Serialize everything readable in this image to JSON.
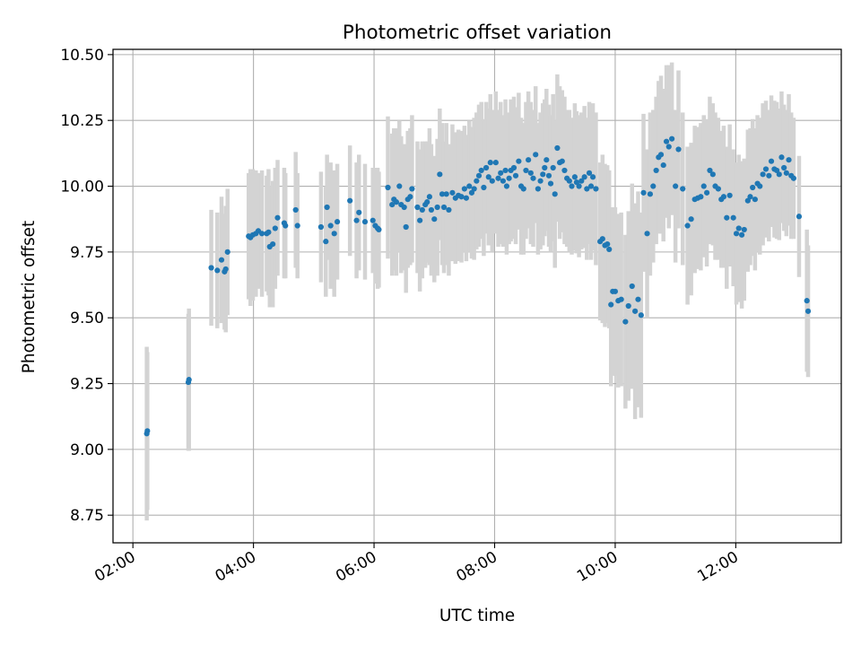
{
  "chart_data": {
    "type": "scatter",
    "title": "Photometric offset variation",
    "xlabel": "UTC time",
    "ylabel": "Photometric offset",
    "x_unit": "hours UTC",
    "xlim": [
      1.67,
      13.75
    ],
    "ylim": [
      8.645,
      10.52
    ],
    "x_ticks": [
      {
        "value": 2,
        "label": "02:00"
      },
      {
        "value": 4,
        "label": "04:00"
      },
      {
        "value": 6,
        "label": "06:00"
      },
      {
        "value": 8,
        "label": "08:00"
      },
      {
        "value": 10,
        "label": "10:00"
      },
      {
        "value": 12,
        "label": "12:00"
      }
    ],
    "y_ticks": [
      {
        "value": 8.75,
        "label": "8.75"
      },
      {
        "value": 9.0,
        "label": "9.00"
      },
      {
        "value": 9.25,
        "label": "9.25"
      },
      {
        "value": 9.5,
        "label": "9.50"
      },
      {
        "value": 9.75,
        "label": "9.75"
      },
      {
        "value": 10.0,
        "label": "10.00"
      },
      {
        "value": 10.25,
        "label": "10.25"
      },
      {
        "value": 10.5,
        "label": "10.50"
      }
    ],
    "grid": true,
    "colors": {
      "point": "#1f77b4",
      "errorbar": "#d3d3d3",
      "grid": "#b0b0b0",
      "axis": "#000000"
    },
    "series": [
      {
        "points": [
          [
            2.23,
            9.06,
            0.33
          ],
          [
            2.24,
            9.07,
            0.3
          ],
          [
            2.92,
            9.255,
            0.26
          ],
          [
            2.93,
            9.265,
            0.27
          ],
          [
            3.3,
            9.69,
            0.22
          ],
          [
            3.4,
            9.68,
            0.22
          ],
          [
            3.47,
            9.72,
            0.24
          ],
          [
            3.52,
            9.675,
            0.22
          ],
          [
            3.54,
            9.685,
            0.24
          ],
          [
            3.57,
            9.75,
            0.24
          ],
          [
            3.92,
            9.81,
            0.24
          ],
          [
            3.95,
            9.805,
            0.26
          ],
          [
            3.99,
            9.815,
            0.25
          ],
          [
            4.04,
            9.82,
            0.24
          ],
          [
            4.08,
            9.83,
            0.22
          ],
          [
            4.14,
            9.82,
            0.24
          ],
          [
            4.22,
            9.82,
            0.22
          ],
          [
            4.25,
            9.825,
            0.24
          ],
          [
            4.27,
            9.77,
            0.23
          ],
          [
            4.32,
            9.78,
            0.24
          ],
          [
            4.36,
            9.84,
            0.23
          ],
          [
            4.4,
            9.88,
            0.22
          ],
          [
            4.51,
            9.86,
            0.21
          ],
          [
            4.53,
            9.85,
            0.2
          ],
          [
            4.7,
            9.91,
            0.22
          ],
          [
            4.73,
            9.85,
            0.2
          ],
          [
            5.12,
            9.845,
            0.21
          ],
          [
            5.2,
            9.79,
            0.21
          ],
          [
            5.22,
            9.92,
            0.2
          ],
          [
            5.28,
            9.85,
            0.24
          ],
          [
            5.34,
            9.82,
            0.24
          ],
          [
            5.39,
            9.865,
            0.22
          ],
          [
            5.6,
            9.945,
            0.21
          ],
          [
            5.71,
            9.87,
            0.22
          ],
          [
            5.75,
            9.9,
            0.22
          ],
          [
            5.85,
            9.865,
            0.22
          ],
          [
            5.98,
            9.87,
            0.2
          ],
          [
            6.02,
            9.85,
            0.22
          ],
          [
            6.06,
            9.84,
            0.23
          ],
          [
            6.08,
            9.835,
            0.22
          ],
          [
            6.23,
            9.995,
            0.27
          ],
          [
            6.3,
            9.93,
            0.27
          ],
          [
            6.33,
            9.95,
            0.27
          ],
          [
            6.37,
            9.94,
            0.28
          ],
          [
            6.42,
            10.0,
            0.25
          ],
          [
            6.45,
            9.93,
            0.26
          ],
          [
            6.5,
            9.92,
            0.24
          ],
          [
            6.53,
            9.845,
            0.25
          ],
          [
            6.56,
            9.95,
            0.26
          ],
          [
            6.6,
            9.96,
            0.26
          ],
          [
            6.63,
            9.99,
            0.28
          ],
          [
            6.72,
            9.92,
            0.25
          ],
          [
            6.76,
            9.87,
            0.27
          ],
          [
            6.8,
            9.91,
            0.26
          ],
          [
            6.85,
            9.93,
            0.24
          ],
          [
            6.88,
            9.94,
            0.23
          ],
          [
            6.92,
            9.96,
            0.26
          ],
          [
            6.95,
            9.91,
            0.25
          ],
          [
            7.0,
            9.875,
            0.24
          ],
          [
            7.05,
            9.92,
            0.26
          ],
          [
            7.09,
            10.045,
            0.25
          ],
          [
            7.13,
            9.97,
            0.27
          ],
          [
            7.16,
            9.92,
            0.25
          ],
          [
            7.2,
            9.97,
            0.27
          ],
          [
            7.24,
            9.91,
            0.25
          ],
          [
            7.3,
            9.975,
            0.26
          ],
          [
            7.35,
            9.955,
            0.25
          ],
          [
            7.4,
            9.965,
            0.25
          ],
          [
            7.45,
            9.96,
            0.25
          ],
          [
            7.5,
            9.99,
            0.24
          ],
          [
            7.53,
            9.955,
            0.24
          ],
          [
            7.58,
            10.0,
            0.25
          ],
          [
            7.62,
            9.975,
            0.25
          ],
          [
            7.66,
            9.99,
            0.27
          ],
          [
            7.7,
            10.02,
            0.26
          ],
          [
            7.74,
            10.04,
            0.27
          ],
          [
            7.78,
            10.06,
            0.26
          ],
          [
            7.82,
            9.995,
            0.26
          ],
          [
            7.86,
            10.07,
            0.25
          ],
          [
            7.9,
            10.035,
            0.26
          ],
          [
            7.93,
            10.09,
            0.26
          ],
          [
            7.96,
            10.02,
            0.27
          ],
          [
            8.02,
            10.09,
            0.27
          ],
          [
            8.06,
            10.03,
            0.26
          ],
          [
            8.1,
            10.05,
            0.27
          ],
          [
            8.14,
            10.02,
            0.25
          ],
          [
            8.18,
            10.06,
            0.27
          ],
          [
            8.2,
            10.0,
            0.26
          ],
          [
            8.24,
            10.03,
            0.25
          ],
          [
            8.27,
            10.06,
            0.27
          ],
          [
            8.32,
            10.07,
            0.27
          ],
          [
            8.35,
            10.04,
            0.26
          ],
          [
            8.4,
            10.095,
            0.26
          ],
          [
            8.44,
            10.0,
            0.26
          ],
          [
            8.48,
            9.99,
            0.25
          ],
          [
            8.52,
            10.06,
            0.26
          ],
          [
            8.56,
            10.1,
            0.26
          ],
          [
            8.6,
            10.05,
            0.27
          ],
          [
            8.64,
            10.03,
            0.26
          ],
          [
            8.68,
            10.12,
            0.26
          ],
          [
            8.72,
            9.99,
            0.25
          ],
          [
            8.76,
            10.02,
            0.26
          ],
          [
            8.8,
            10.045,
            0.27
          ],
          [
            8.83,
            10.07,
            0.26
          ],
          [
            8.86,
            10.1,
            0.27
          ],
          [
            8.9,
            10.04,
            0.27
          ],
          [
            8.93,
            10.01,
            0.26
          ],
          [
            8.97,
            10.07,
            0.28
          ],
          [
            9.0,
            9.97,
            0.28
          ],
          [
            9.04,
            10.145,
            0.28
          ],
          [
            9.08,
            10.09,
            0.29
          ],
          [
            9.12,
            10.095,
            0.27
          ],
          [
            9.16,
            10.06,
            0.28
          ],
          [
            9.2,
            10.03,
            0.26
          ],
          [
            9.24,
            10.02,
            0.27
          ],
          [
            9.28,
            10.0,
            0.26
          ],
          [
            9.33,
            10.035,
            0.28
          ],
          [
            9.36,
            10.015,
            0.27
          ],
          [
            9.4,
            10.0,
            0.27
          ],
          [
            9.44,
            10.02,
            0.26
          ],
          [
            9.49,
            10.035,
            0.27
          ],
          [
            9.53,
            9.99,
            0.27
          ],
          [
            9.57,
            10.05,
            0.27
          ],
          [
            9.6,
            10.0,
            0.28
          ],
          [
            9.63,
            10.035,
            0.28
          ],
          [
            9.68,
            9.99,
            0.29
          ],
          [
            9.75,
            9.79,
            0.3
          ],
          [
            9.79,
            9.8,
            0.32
          ],
          [
            9.83,
            9.775,
            0.31
          ],
          [
            9.87,
            9.78,
            0.3
          ],
          [
            9.9,
            9.76,
            0.3
          ],
          [
            9.93,
            9.55,
            0.31
          ],
          [
            9.96,
            9.6,
            0.32
          ],
          [
            10.0,
            9.6,
            0.32
          ],
          [
            10.05,
            9.565,
            0.33
          ],
          [
            10.1,
            9.57,
            0.33
          ],
          [
            10.17,
            9.485,
            0.33
          ],
          [
            10.22,
            9.545,
            0.36
          ],
          [
            10.28,
            9.62,
            0.39
          ],
          [
            10.33,
            9.525,
            0.41
          ],
          [
            10.38,
            9.57,
            0.41
          ],
          [
            10.43,
            9.51,
            0.39
          ],
          [
            10.47,
            9.975,
            0.3
          ],
          [
            10.53,
            9.82,
            0.32
          ],
          [
            10.58,
            9.97,
            0.31
          ],
          [
            10.63,
            10.0,
            0.29
          ],
          [
            10.68,
            10.06,
            0.28
          ],
          [
            10.72,
            10.11,
            0.29
          ],
          [
            10.76,
            10.12,
            0.3
          ],
          [
            10.8,
            10.08,
            0.29
          ],
          [
            10.85,
            10.17,
            0.29
          ],
          [
            10.89,
            10.15,
            0.31
          ],
          [
            10.94,
            10.18,
            0.29
          ],
          [
            11.0,
            10.0,
            0.29
          ],
          [
            11.05,
            10.14,
            0.3
          ],
          [
            11.12,
            9.99,
            0.29
          ],
          [
            11.2,
            9.85,
            0.3
          ],
          [
            11.26,
            9.875,
            0.29
          ],
          [
            11.32,
            9.95,
            0.28
          ],
          [
            11.37,
            9.955,
            0.27
          ],
          [
            11.42,
            9.96,
            0.28
          ],
          [
            11.47,
            10.0,
            0.27
          ],
          [
            11.52,
            9.975,
            0.28
          ],
          [
            11.57,
            10.06,
            0.28
          ],
          [
            11.62,
            10.045,
            0.27
          ],
          [
            11.66,
            10.0,
            0.28
          ],
          [
            11.71,
            9.99,
            0.27
          ],
          [
            11.76,
            9.95,
            0.26
          ],
          [
            11.8,
            9.96,
            0.27
          ],
          [
            11.85,
            9.88,
            0.27
          ],
          [
            11.9,
            9.965,
            0.27
          ],
          [
            11.96,
            9.88,
            0.26
          ],
          [
            12.01,
            9.82,
            0.27
          ],
          [
            12.05,
            9.84,
            0.28
          ],
          [
            12.1,
            9.815,
            0.28
          ],
          [
            12.14,
            9.835,
            0.27
          ],
          [
            12.2,
            9.945,
            0.27
          ],
          [
            12.24,
            9.96,
            0.26
          ],
          [
            12.28,
            9.995,
            0.26
          ],
          [
            12.32,
            9.95,
            0.27
          ],
          [
            12.36,
            10.01,
            0.26
          ],
          [
            12.4,
            10.0,
            0.26
          ],
          [
            12.45,
            10.045,
            0.27
          ],
          [
            12.5,
            10.065,
            0.26
          ],
          [
            12.55,
            10.04,
            0.25
          ],
          [
            12.59,
            10.095,
            0.25
          ],
          [
            12.64,
            10.065,
            0.26
          ],
          [
            12.68,
            10.06,
            0.26
          ],
          [
            12.72,
            10.045,
            0.25
          ],
          [
            12.76,
            10.11,
            0.25
          ],
          [
            12.8,
            10.07,
            0.24
          ],
          [
            12.84,
            10.05,
            0.24
          ],
          [
            12.88,
            10.1,
            0.25
          ],
          [
            12.92,
            10.04,
            0.24
          ],
          [
            12.96,
            10.03,
            0.23
          ],
          [
            13.05,
            9.885,
            0.23
          ],
          [
            13.18,
            9.565,
            0.27
          ],
          [
            13.2,
            9.525,
            0.25
          ]
        ]
      }
    ]
  }
}
